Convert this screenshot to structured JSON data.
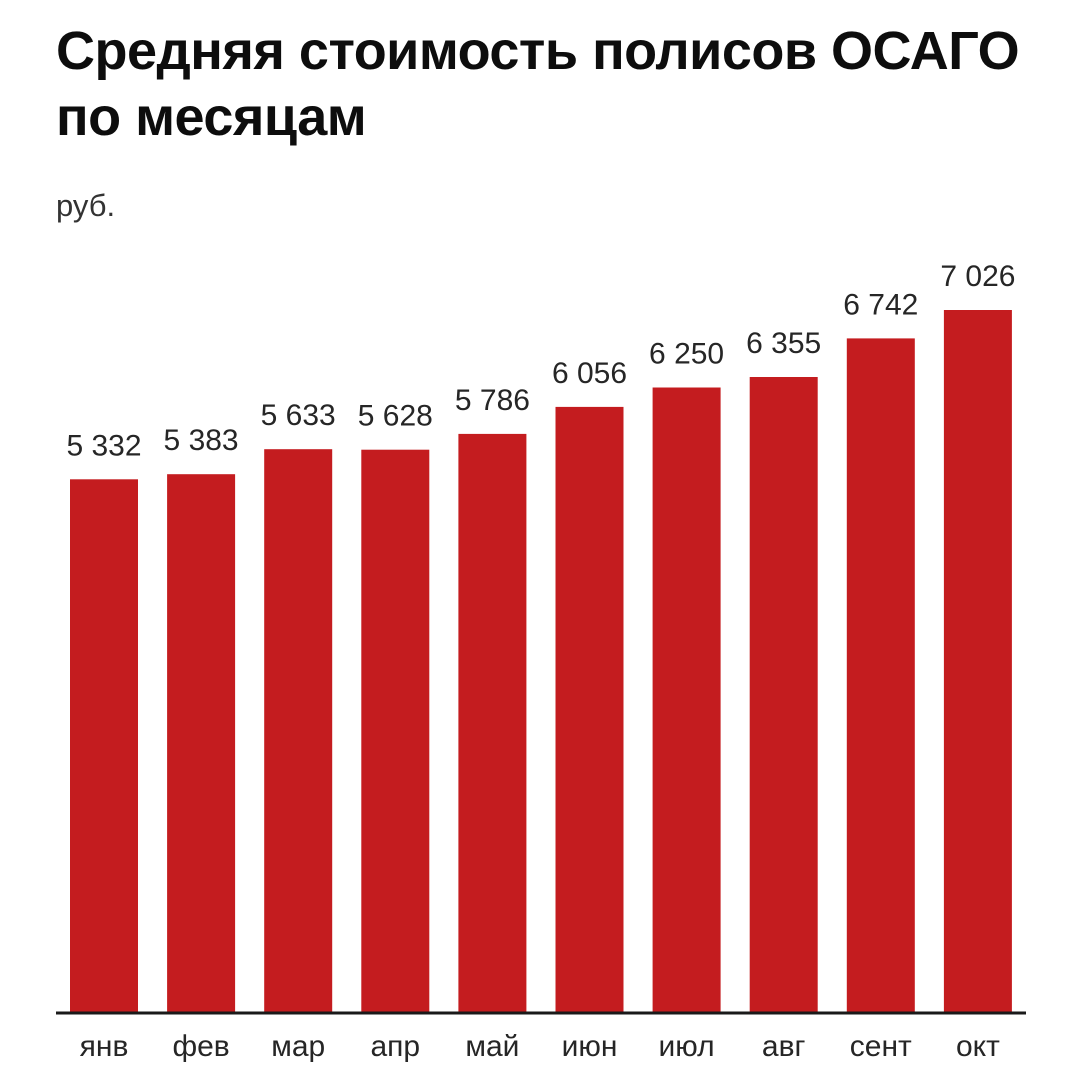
{
  "chart_data": {
    "type": "bar",
    "title": "Средняя стоимость полисов ОСАГО по месяцам",
    "ylabel": "руб.",
    "xlabel": "",
    "categories": [
      "янв",
      "фев",
      "мар",
      "апр",
      "май",
      "июн",
      "июл",
      "авг",
      "сент",
      "окт"
    ],
    "values": [
      5332,
      5383,
      5633,
      5628,
      5786,
      6056,
      6250,
      6355,
      6742,
      7026
    ],
    "value_labels": [
      "5 332",
      "5 383",
      "5 633",
      "5 628",
      "5 786",
      "6 056",
      "6 250",
      "6 355",
      "6 742",
      "7 026"
    ],
    "ylim": [
      0,
      7026
    ],
    "grid": false,
    "legend": "none",
    "colors": {
      "bar": "#c41c1f",
      "axis": "#1a1a1a",
      "text": "#262626"
    }
  }
}
